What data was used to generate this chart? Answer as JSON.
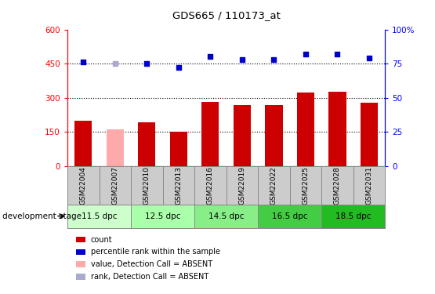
{
  "title": "GDS665 / 110173_at",
  "samples": [
    "GSM22004",
    "GSM22007",
    "GSM22010",
    "GSM22013",
    "GSM22016",
    "GSM22019",
    "GSM22022",
    "GSM22025",
    "GSM22028",
    "GSM22031"
  ],
  "bar_values": [
    200,
    162,
    193,
    152,
    283,
    268,
    268,
    323,
    328,
    278
  ],
  "bar_colors": [
    "#cc0000",
    "#ffaaaa",
    "#cc0000",
    "#cc0000",
    "#cc0000",
    "#cc0000",
    "#cc0000",
    "#cc0000",
    "#cc0000",
    "#cc0000"
  ],
  "rank_values": [
    76,
    75,
    75,
    72,
    80,
    78,
    78,
    82,
    82,
    79
  ],
  "rank_absent_idx": [
    1
  ],
  "rank_color_normal": "#0000cc",
  "rank_color_absent": "#aaaacc",
  "ylim_left": [
    0,
    600
  ],
  "ylim_right": [
    0,
    100
  ],
  "yticks_left": [
    0,
    150,
    300,
    450,
    600
  ],
  "yticks_right": [
    0,
    25,
    50,
    75,
    100
  ],
  "grid_values": [
    150,
    300,
    450
  ],
  "stages": [
    {
      "label": "11.5 dpc",
      "start": 0,
      "end": 2,
      "color": "#ccffcc"
    },
    {
      "label": "12.5 dpc",
      "start": 2,
      "end": 4,
      "color": "#aaffaa"
    },
    {
      "label": "14.5 dpc",
      "start": 4,
      "end": 6,
      "color": "#88ee88"
    },
    {
      "label": "16.5 dpc",
      "start": 6,
      "end": 8,
      "color": "#44cc44"
    },
    {
      "label": "18.5 dpc",
      "start": 8,
      "end": 10,
      "color": "#22bb22"
    }
  ],
  "bar_width": 0.55,
  "legend_items": [
    {
      "color": "#cc0000",
      "label": "count"
    },
    {
      "color": "#0000cc",
      "label": "percentile rank within the sample"
    },
    {
      "color": "#ffaaaa",
      "label": "value, Detection Call = ABSENT"
    },
    {
      "color": "#aaaacc",
      "label": "rank, Detection Call = ABSENT"
    }
  ],
  "left_label": "development stage"
}
